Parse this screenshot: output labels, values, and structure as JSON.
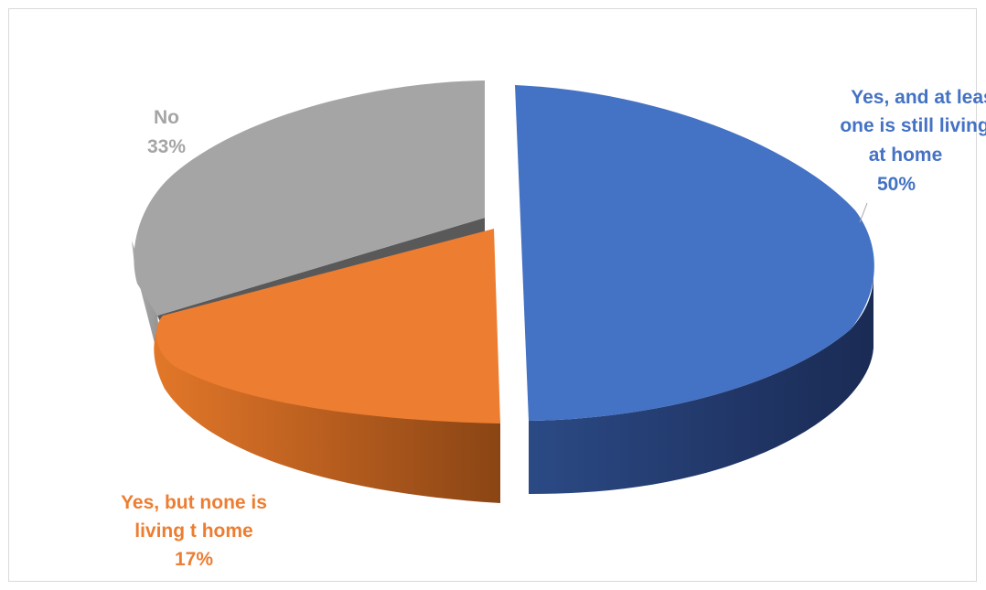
{
  "chart_data": {
    "type": "pie",
    "title": "",
    "style": "3d-exploded",
    "slices": [
      {
        "label_lines": [
          "Yes, and at least",
          "one is still living",
          "at home"
        ],
        "pct_label": "50%",
        "value": 50,
        "color": "#4472C4"
      },
      {
        "label_lines": [
          "Yes, but none is",
          "living t home"
        ],
        "pct_label": "17%",
        "value": 17,
        "color": "#ED7D31"
      },
      {
        "label_lines": [
          "No"
        ],
        "pct_label": "33%",
        "value": 33,
        "color": "#A5A5A5"
      }
    ],
    "legend": "none"
  }
}
